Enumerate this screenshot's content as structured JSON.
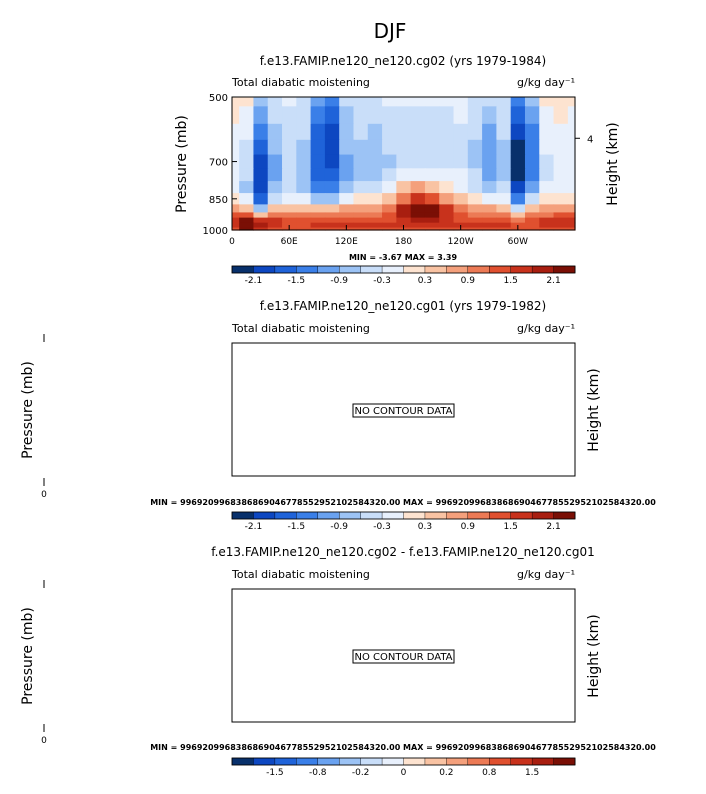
{
  "season": "DJF",
  "units": "g/kg day⁻¹",
  "field": "Total diabatic moistening",
  "colors": [
    "#08306b",
    "#0d47c1",
    "#1f63d9",
    "#3a7fe8",
    "#6aa2f0",
    "#9cc3f5",
    "#c9def9",
    "#e8f0fc",
    "#fde3d0",
    "#f9c3a3",
    "#f4a07c",
    "#ec7a55",
    "#e0502f",
    "#c8321c",
    "#a81e10",
    "#7a0f05"
  ],
  "panels": [
    {
      "title": "f.e13.FAMIP.ne120_ne120.cg02 (yrs 1979-1984)",
      "left_label": "Total diabatic moistening",
      "right_label": "g/kg day⁻¹",
      "ylabel": "Pressure (mb)",
      "ylabel2": "Height (km)",
      "yticks": [
        "500",
        "700",
        "850",
        "1000"
      ],
      "ytick_values": [
        500,
        700,
        850,
        1000
      ],
      "ylim": [
        1000,
        500
      ],
      "xticks": [
        "0",
        "60E",
        "120E",
        "180",
        "120W",
        "60W"
      ],
      "xtick_values": [
        0,
        60,
        120,
        180,
        240,
        300
      ],
      "xlim": [
        0,
        360
      ],
      "height_ticks": [
        "4"
      ],
      "stats": "MIN =  -3.67   MAX =   3.39",
      "colorbar_labels": [
        "-2.1",
        "-1.5",
        "-0.9",
        "-0.3",
        "0.3",
        "0.9",
        "1.5",
        "2.1"
      ],
      "no_data_text": ""
    },
    {
      "title": "f.e13.FAMIP.ne120_ne120.cg01 (yrs 1979-1982)",
      "left_label": "Total diabatic moistening",
      "right_label": "g/kg day⁻¹",
      "ylabel": "Pressure (mb)",
      "ylabel2": "Height (km)",
      "yticks": [
        "0"
      ],
      "no_data_text": "NO CONTOUR DATA",
      "stats": "MIN = 9969209968386869046778552952102584320.00   MAX = 9969209968386869046778552952102584320.00",
      "colorbar_labels": [
        "-2.1",
        "-1.5",
        "-0.9",
        "-0.3",
        "0.3",
        "0.9",
        "1.5",
        "2.1"
      ]
    },
    {
      "title": "f.e13.FAMIP.ne120_ne120.cg02 - f.e13.FAMIP.ne120_ne120.cg01",
      "left_label": "Total diabatic moistening",
      "right_label": "g/kg day⁻¹",
      "ylabel": "Pressure (mb)",
      "ylabel2": "Height (km)",
      "yticks": [
        "0"
      ],
      "no_data_text": "NO CONTOUR DATA",
      "stats": "MIN = 9969209968386869046778552952102584320.00   MAX = 9969209968386869046778552952102584320.00",
      "colorbar_labels": [
        "-1.5",
        "-0.8",
        "-0.2",
        "0",
        "0.2",
        "0.8",
        "1.5"
      ]
    }
  ],
  "chart_data": [
    {
      "type": "heatmap",
      "title": "f.e13.FAMIP.ne120_ne120.cg02 (yrs 1979-1984)",
      "xlabel": "",
      "ylabel": "Pressure (mb)",
      "y2label": "Height (km)",
      "xlim": [
        0,
        360
      ],
      "ylim": [
        1000,
        500
      ],
      "min": -3.67,
      "max": 3.39,
      "levels": [
        -2.1,
        -1.8,
        -1.5,
        -1.2,
        -0.9,
        -0.6,
        -0.3,
        0,
        0.3,
        0.6,
        0.9,
        1.2,
        1.5,
        1.8,
        2.1
      ],
      "x": [
        0,
        15,
        30,
        45,
        60,
        75,
        90,
        105,
        120,
        135,
        150,
        165,
        180,
        195,
        210,
        225,
        240,
        255,
        270,
        285,
        300,
        315,
        330,
        345,
        360
      ],
      "y": [
        500,
        550,
        600,
        650,
        700,
        750,
        800,
        850,
        900,
        925,
        950,
        975,
        1000
      ],
      "z": [
        [
          0.1,
          0.2,
          -0.6,
          -0.4,
          -0.2,
          -0.3,
          -0.9,
          -1.2,
          -0.4,
          -0.3,
          -0.4,
          -0.2,
          -0.2,
          -0.2,
          -0.2,
          -0.2,
          -0.2,
          -0.3,
          -0.5,
          -0.3,
          -1.3,
          -0.8,
          0.1,
          0.2,
          0.1
        ],
        [
          0.1,
          -0.1,
          -1.0,
          -0.5,
          -0.3,
          -0.4,
          -1.4,
          -1.5,
          -0.6,
          -0.4,
          -0.5,
          -0.3,
          -0.3,
          -0.3,
          -0.3,
          -0.3,
          -0.2,
          -0.4,
          -0.7,
          -0.4,
          -1.7,
          -1.0,
          -0.1,
          0.1,
          0.0
        ],
        [
          0.0,
          -0.2,
          -1.4,
          -0.7,
          -0.3,
          -0.5,
          -1.6,
          -1.8,
          -0.7,
          -0.5,
          -0.6,
          -0.4,
          -0.4,
          -0.4,
          -0.4,
          -0.3,
          -0.3,
          -0.5,
          -0.9,
          -0.5,
          -2.0,
          -1.2,
          -0.2,
          0.0,
          0.0
        ],
        [
          -0.1,
          -0.3,
          -1.7,
          -0.8,
          -0.4,
          -0.6,
          -1.7,
          -1.9,
          -0.8,
          -0.6,
          -0.7,
          -0.5,
          -0.4,
          -0.4,
          -0.4,
          -0.3,
          -0.3,
          -0.6,
          -1.0,
          -0.6,
          -2.2,
          -1.3,
          -0.2,
          -0.1,
          -0.1
        ],
        [
          -0.1,
          -0.4,
          -1.8,
          -0.9,
          -0.5,
          -0.7,
          -1.6,
          -1.8,
          -0.9,
          -0.7,
          -0.7,
          -0.6,
          -0.4,
          -0.3,
          -0.3,
          -0.3,
          -0.3,
          -0.6,
          -1.1,
          -0.7,
          -2.3,
          -1.3,
          -0.3,
          -0.1,
          -0.1
        ],
        [
          -0.2,
          -0.5,
          -1.9,
          -0.9,
          -0.5,
          -0.7,
          -1.5,
          -1.6,
          -0.9,
          -0.6,
          -0.6,
          -0.5,
          -0.2,
          0.0,
          0.0,
          -0.1,
          -0.2,
          -0.5,
          -1.0,
          -0.6,
          -2.1,
          -1.2,
          -0.3,
          -0.2,
          -0.2
        ],
        [
          -0.2,
          -0.6,
          -2.0,
          -0.8,
          -0.4,
          -0.6,
          -1.3,
          -1.4,
          -0.7,
          -0.4,
          -0.3,
          -0.1,
          0.4,
          0.7,
          0.6,
          0.3,
          0.0,
          -0.3,
          -0.8,
          -0.5,
          -1.9,
          -1.0,
          -0.2,
          -0.2,
          -0.2
        ],
        [
          0.2,
          -0.2,
          -1.5,
          -0.4,
          0.0,
          -0.2,
          -0.6,
          -0.7,
          -0.2,
          0.1,
          0.3,
          0.6,
          1.2,
          1.6,
          1.4,
          0.9,
          0.5,
          0.2,
          -0.2,
          -0.1,
          -1.2,
          -0.4,
          0.1,
          0.1,
          0.2
        ],
        [
          0.9,
          0.6,
          -0.8,
          0.5,
          0.6,
          0.5,
          0.4,
          0.5,
          0.7,
          0.8,
          0.9,
          1.2,
          2.0,
          2.6,
          2.3,
          1.7,
          1.2,
          0.9,
          0.7,
          0.6,
          -0.4,
          0.4,
          0.7,
          0.8,
          0.9
        ],
        [
          1.4,
          1.3,
          0.4,
          1.1,
          1.1,
          1.0,
          1.1,
          1.2,
          1.2,
          1.2,
          1.2,
          1.4,
          1.9,
          2.4,
          2.2,
          1.8,
          1.4,
          1.2,
          1.2,
          1.1,
          0.6,
          1.0,
          1.2,
          1.3,
          1.4
        ],
        [
          1.8,
          2.4,
          1.6,
          1.6,
          1.5,
          1.4,
          1.5,
          1.5,
          1.5,
          1.5,
          1.5,
          1.5,
          1.7,
          2.0,
          1.9,
          1.7,
          1.5,
          1.5,
          1.5,
          1.5,
          1.2,
          1.4,
          1.6,
          1.7,
          1.8
        ],
        [
          1.7,
          2.6,
          2.0,
          1.6,
          1.5,
          1.5,
          1.6,
          1.6,
          1.6,
          1.6,
          1.6,
          1.6,
          1.6,
          1.7,
          1.7,
          1.6,
          1.6,
          1.6,
          1.6,
          1.6,
          1.5,
          1.5,
          1.6,
          1.7,
          1.7
        ],
        [
          1.5,
          2.2,
          1.8,
          1.4,
          1.4,
          1.4,
          1.5,
          1.5,
          1.5,
          1.5,
          1.5,
          1.5,
          1.5,
          1.5,
          1.5,
          1.5,
          1.5,
          1.5,
          1.5,
          1.5,
          1.4,
          1.4,
          1.5,
          1.5,
          1.5
        ]
      ]
    }
  ]
}
